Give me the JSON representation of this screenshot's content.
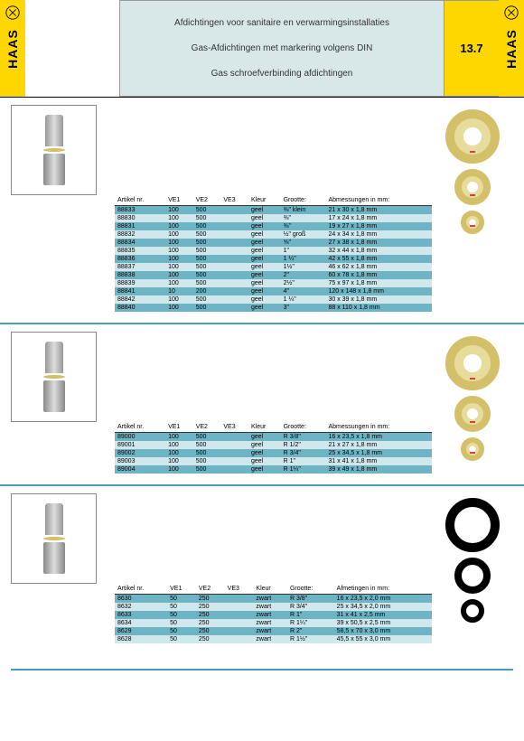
{
  "page_number": "13.7",
  "header": {
    "line1": "Afdichtingen voor sanitaire en verwarmingsinstallaties",
    "line2": "Gas-Afdichtingen met markering volgens DIN",
    "line3": "Gas schroefverbinding afdichtingen"
  },
  "logo": "HAAS",
  "sections": [
    {
      "ring_style": "yellow",
      "columns": [
        "Artikel nr.",
        "VE1",
        "VE2",
        "VE3",
        "Kleur",
        "Grootte:",
        "Abmessungen in mm:"
      ],
      "rows": [
        [
          "88833",
          "100",
          "500",
          "",
          "geel",
          "⅜\" klein",
          "21 x 30 x 1,8 mm"
        ],
        [
          "88830",
          "100",
          "500",
          "",
          "geel",
          "⅜\"",
          "17 x 24 x 1,8 mm"
        ],
        [
          "88831",
          "100",
          "500",
          "",
          "geel",
          "⅜\"",
          "19 x 27 x 1,8 mm"
        ],
        [
          "88832",
          "100",
          "500",
          "",
          "geel",
          "½\" groß",
          "24 x 34 x 1,8 mm"
        ],
        [
          "88834",
          "100",
          "500",
          "",
          "geel",
          "⅝\"",
          "27 x 38 x 1,8 mm"
        ],
        [
          "88835",
          "100",
          "500",
          "",
          "geel",
          "1\"",
          "32 x 44 x 1,8 mm"
        ],
        [
          "88836",
          "100",
          "500",
          "",
          "geel",
          "1 ¼\"",
          "42 x 55 x 1,8 mm"
        ],
        [
          "88837",
          "100",
          "500",
          "",
          "geel",
          "1½\"",
          "46 x 62 x 1,8 mm"
        ],
        [
          "88838",
          "100",
          "500",
          "",
          "geel",
          "2\"",
          "60 x 78 x 1,8 mm"
        ],
        [
          "88839",
          "100",
          "500",
          "",
          "geel",
          "2½\"",
          "75 x 97 x 1,8 mm"
        ],
        [
          "88841",
          "10",
          "200",
          "",
          "geel",
          "4\"",
          "120 x 148 x 1,8 mm"
        ],
        [
          "88842",
          "100",
          "500",
          "",
          "geel",
          "1 ¼\"",
          "30 x 39 x 1,8 mm"
        ],
        [
          "88840",
          "100",
          "500",
          "",
          "geel",
          "3\"",
          "88 x 110 x 1,8 mm"
        ]
      ]
    },
    {
      "ring_style": "yellow",
      "columns": [
        "Artikel nr.",
        "VE1",
        "VE2",
        "VE3",
        "Kleur",
        "Grootte:",
        "Abmessungen in mm:"
      ],
      "rows": [
        [
          "89000",
          "100",
          "500",
          "",
          "geel",
          "R 3/8\"",
          "16 x 23,5 x 1,8 mm"
        ],
        [
          "89001",
          "100",
          "500",
          "",
          "geel",
          "R 1/2\"",
          "21 x 27 x 1,8 mm"
        ],
        [
          "89002",
          "100",
          "500",
          "",
          "geel",
          "R 3/4\"",
          "25 x 34,5 x 1,8 mm"
        ],
        [
          "89003",
          "100",
          "500",
          "",
          "geel",
          "R 1\"",
          "31 x 41 x 1,8 mm"
        ],
        [
          "89004",
          "100",
          "500",
          "",
          "geel",
          "R 1¼\"",
          "39 x 49 x 1,8 mm"
        ]
      ]
    },
    {
      "ring_style": "black",
      "columns": [
        "Artikel nr.",
        "VE1",
        "VE2",
        "VE3",
        "Kleur",
        "Grootte:",
        "Afmetingen in mm:"
      ],
      "rows": [
        [
          "8630",
          "50",
          "250",
          "",
          "zwart",
          "R 3/8\"",
          "16 x 23,5 x 2,0 mm"
        ],
        [
          "8632",
          "50",
          "250",
          "",
          "zwart",
          "R 3/4\"",
          "25 x 34,5 x 2,0 mm"
        ],
        [
          "8633",
          "50",
          "250",
          "",
          "zwart",
          "R 1\"",
          "31 x 41 x 2,5 mm"
        ],
        [
          "8634",
          "50",
          "250",
          "",
          "zwart",
          "R 1¼\"",
          "39 x 50,5 x 2,5 mm"
        ],
        [
          "8629",
          "50",
          "250",
          "",
          "zwart",
          "R 2\"",
          "58,5 x 70 x 3,0 mm"
        ],
        [
          "8628",
          "50",
          "250",
          "",
          "zwart",
          "R 1½\"",
          "45,5 x 55 x 3,0 mm"
        ]
      ]
    }
  ]
}
